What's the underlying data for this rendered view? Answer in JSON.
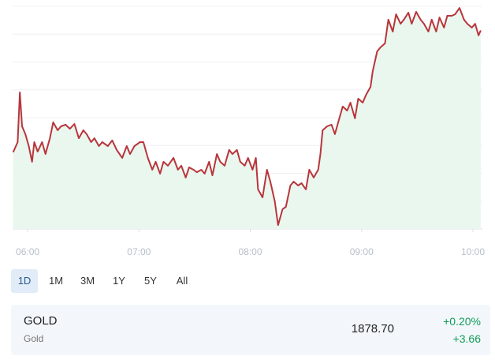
{
  "chart_data": {
    "type": "line",
    "x": [
      5.87,
      5.91,
      5.93,
      5.95,
      5.98,
      6.01,
      6.04,
      6.06,
      6.09,
      6.13,
      6.16,
      6.2,
      6.23,
      6.27,
      6.3,
      6.34,
      6.38,
      6.42,
      6.46,
      6.5,
      6.53,
      6.57,
      6.6,
      6.64,
      6.67,
      6.72,
      6.76,
      6.8,
      6.85,
      6.89,
      6.92,
      6.96,
      7.01,
      7.04,
      7.08,
      7.12,
      7.15,
      7.19,
      7.22,
      7.26,
      7.31,
      7.35,
      7.38,
      7.42,
      7.45,
      7.49,
      7.52,
      7.56,
      7.59,
      7.63,
      7.66,
      7.7,
      7.73,
      7.77,
      7.81,
      7.84,
      7.88,
      7.91,
      7.95,
      7.98,
      8.02,
      8.05,
      8.07,
      8.11,
      8.15,
      8.18,
      8.22,
      8.25,
      8.29,
      8.32,
      8.36,
      8.39,
      8.43,
      8.46,
      8.5,
      8.53,
      8.57,
      8.61,
      8.63,
      8.65,
      8.69,
      8.73,
      8.76,
      8.8,
      8.83,
      8.87,
      8.9,
      8.94,
      8.97,
      9.01,
      9.04,
      9.08,
      9.1,
      9.14,
      9.17,
      9.21,
      9.24,
      9.28,
      9.31,
      9.35,
      9.38,
      9.42,
      9.45,
      9.49,
      9.53,
      9.56,
      9.6,
      9.63,
      9.67,
      9.7,
      9.74,
      9.77,
      9.81,
      9.84,
      9.88,
      9.92,
      9.95,
      9.99,
      10.02,
      10.05,
      10.07
    ],
    "series": [
      {
        "color": "#b8353b",
        "values": [
          1872.13,
          1872.68,
          1875.36,
          1873.53,
          1873.11,
          1872.47,
          1871.62,
          1872.68,
          1872.17,
          1872.68,
          1872.04,
          1872.89,
          1873.75,
          1873.32,
          1873.53,
          1873.62,
          1873.4,
          1873.66,
          1872.89,
          1873.32,
          1873.11,
          1872.68,
          1872.89,
          1872.47,
          1872.68,
          1872.47,
          1872.77,
          1872.26,
          1871.83,
          1872.47,
          1872.04,
          1872.47,
          1872.68,
          1872.68,
          1871.83,
          1871.19,
          1871.62,
          1870.98,
          1871.62,
          1871.41,
          1871.83,
          1871.19,
          1871.41,
          1870.77,
          1871.32,
          1871.19,
          1871.06,
          1871.19,
          1870.98,
          1871.62,
          1870.89,
          1872.04,
          1871.62,
          1871.41,
          1872.26,
          1872.04,
          1872.26,
          1871.62,
          1871.41,
          1871.83,
          1871.19,
          1871.83,
          1870.13,
          1869.7,
          1871.19,
          1870.55,
          1869.49,
          1868.21,
          1869.07,
          1869.19,
          1870.34,
          1870.55,
          1870.34,
          1870.47,
          1870.13,
          1871.19,
          1870.77,
          1871.19,
          1872.04,
          1873.32,
          1873.53,
          1873.62,
          1873.11,
          1873.96,
          1874.6,
          1874.38,
          1874.81,
          1873.96,
          1875.02,
          1874.81,
          1875.23,
          1875.66,
          1876.51,
          1877.57,
          1877.79,
          1878.0,
          1879.28,
          1878.64,
          1879.57,
          1879.06,
          1879.28,
          1879.66,
          1879.06,
          1879.7,
          1879.28,
          1879.06,
          1878.64,
          1879.28,
          1878.64,
          1879.4,
          1878.85,
          1879.49,
          1879.49,
          1879.57,
          1879.91,
          1879.28,
          1879.06,
          1878.85,
          1879.06,
          1878.43,
          1878.7
        ]
      }
    ],
    "xlim": [
      5.865,
      10.085
    ],
    "xticks": [
      {
        "value": 6,
        "label": "06:00"
      },
      {
        "value": 7,
        "label": "07:00"
      },
      {
        "value": 8,
        "label": "08:00"
      },
      {
        "value": 9,
        "label": "09:00"
      },
      {
        "value": 10,
        "label": "10:00"
      }
    ],
    "ylim": [
      1868,
      1880
    ],
    "yticks": [
      1868,
      1869.5,
      1871,
      1872.5,
      1874,
      1875.5,
      1877,
      1878.5,
      1880
    ],
    "grid": true,
    "area_color": "#e9f7ee"
  },
  "range_buttons": [
    "1D",
    "1M",
    "3M",
    "1Y",
    "5Y",
    "All"
  ],
  "quote": {
    "symbol": "GOLD",
    "name": "Gold",
    "price": "1878.70",
    "change_percent": "+0.20%",
    "change": "+3.66"
  }
}
